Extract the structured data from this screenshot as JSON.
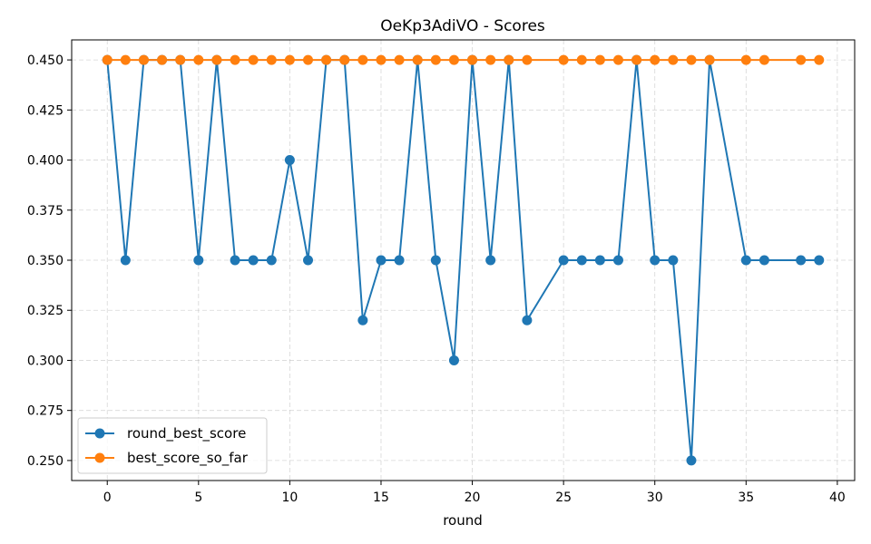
{
  "chart_data": {
    "type": "line",
    "title": "OeKp3AdiVO - Scores",
    "xlabel": "round",
    "ylabel": "",
    "xlim": [
      -1.95,
      40.95
    ],
    "ylim": [
      0.24,
      0.46
    ],
    "xticks": [
      0,
      5,
      10,
      15,
      20,
      25,
      30,
      35,
      40
    ],
    "yticks": [
      0.25,
      0.275,
      0.3,
      0.325,
      0.35,
      0.375,
      0.4,
      0.425,
      0.45
    ],
    "ytick_labels": [
      "0.250",
      "0.275",
      "0.300",
      "0.325",
      "0.350",
      "0.375",
      "0.400",
      "0.425",
      "0.450"
    ],
    "grid": true,
    "legend_position": "lower-left",
    "series": [
      {
        "name": "round_best_score",
        "color": "#1f77b4",
        "x": [
          0,
          1,
          2,
          3,
          4,
          5,
          6,
          7,
          8,
          9,
          10,
          11,
          12,
          13,
          14,
          15,
          16,
          17,
          18,
          19,
          20,
          21,
          22,
          23,
          25,
          26,
          27,
          28,
          29,
          30,
          31,
          32,
          33,
          35,
          36,
          38,
          39
        ],
        "y": [
          0.45,
          0.35,
          0.45,
          0.45,
          0.45,
          0.35,
          0.45,
          0.35,
          0.35,
          0.35,
          0.4,
          0.35,
          0.45,
          0.45,
          0.32,
          0.35,
          0.35,
          0.45,
          0.35,
          0.3,
          0.45,
          0.35,
          0.45,
          0.32,
          0.35,
          0.35,
          0.35,
          0.35,
          0.45,
          0.35,
          0.35,
          0.25,
          0.45,
          0.35,
          0.35,
          0.35,
          0.35
        ]
      },
      {
        "name": "best_score_so_far",
        "color": "#ff7f0e",
        "x": [
          0,
          1,
          2,
          3,
          4,
          5,
          6,
          7,
          8,
          9,
          10,
          11,
          12,
          13,
          14,
          15,
          16,
          17,
          18,
          19,
          20,
          21,
          22,
          23,
          25,
          26,
          27,
          28,
          29,
          30,
          31,
          32,
          33,
          35,
          36,
          38,
          39
        ],
        "y": [
          0.45,
          0.45,
          0.45,
          0.45,
          0.45,
          0.45,
          0.45,
          0.45,
          0.45,
          0.45,
          0.45,
          0.45,
          0.45,
          0.45,
          0.45,
          0.45,
          0.45,
          0.45,
          0.45,
          0.45,
          0.45,
          0.45,
          0.45,
          0.45,
          0.45,
          0.45,
          0.45,
          0.45,
          0.45,
          0.45,
          0.45,
          0.45,
          0.45,
          0.45,
          0.45,
          0.45,
          0.45
        ]
      }
    ]
  }
}
